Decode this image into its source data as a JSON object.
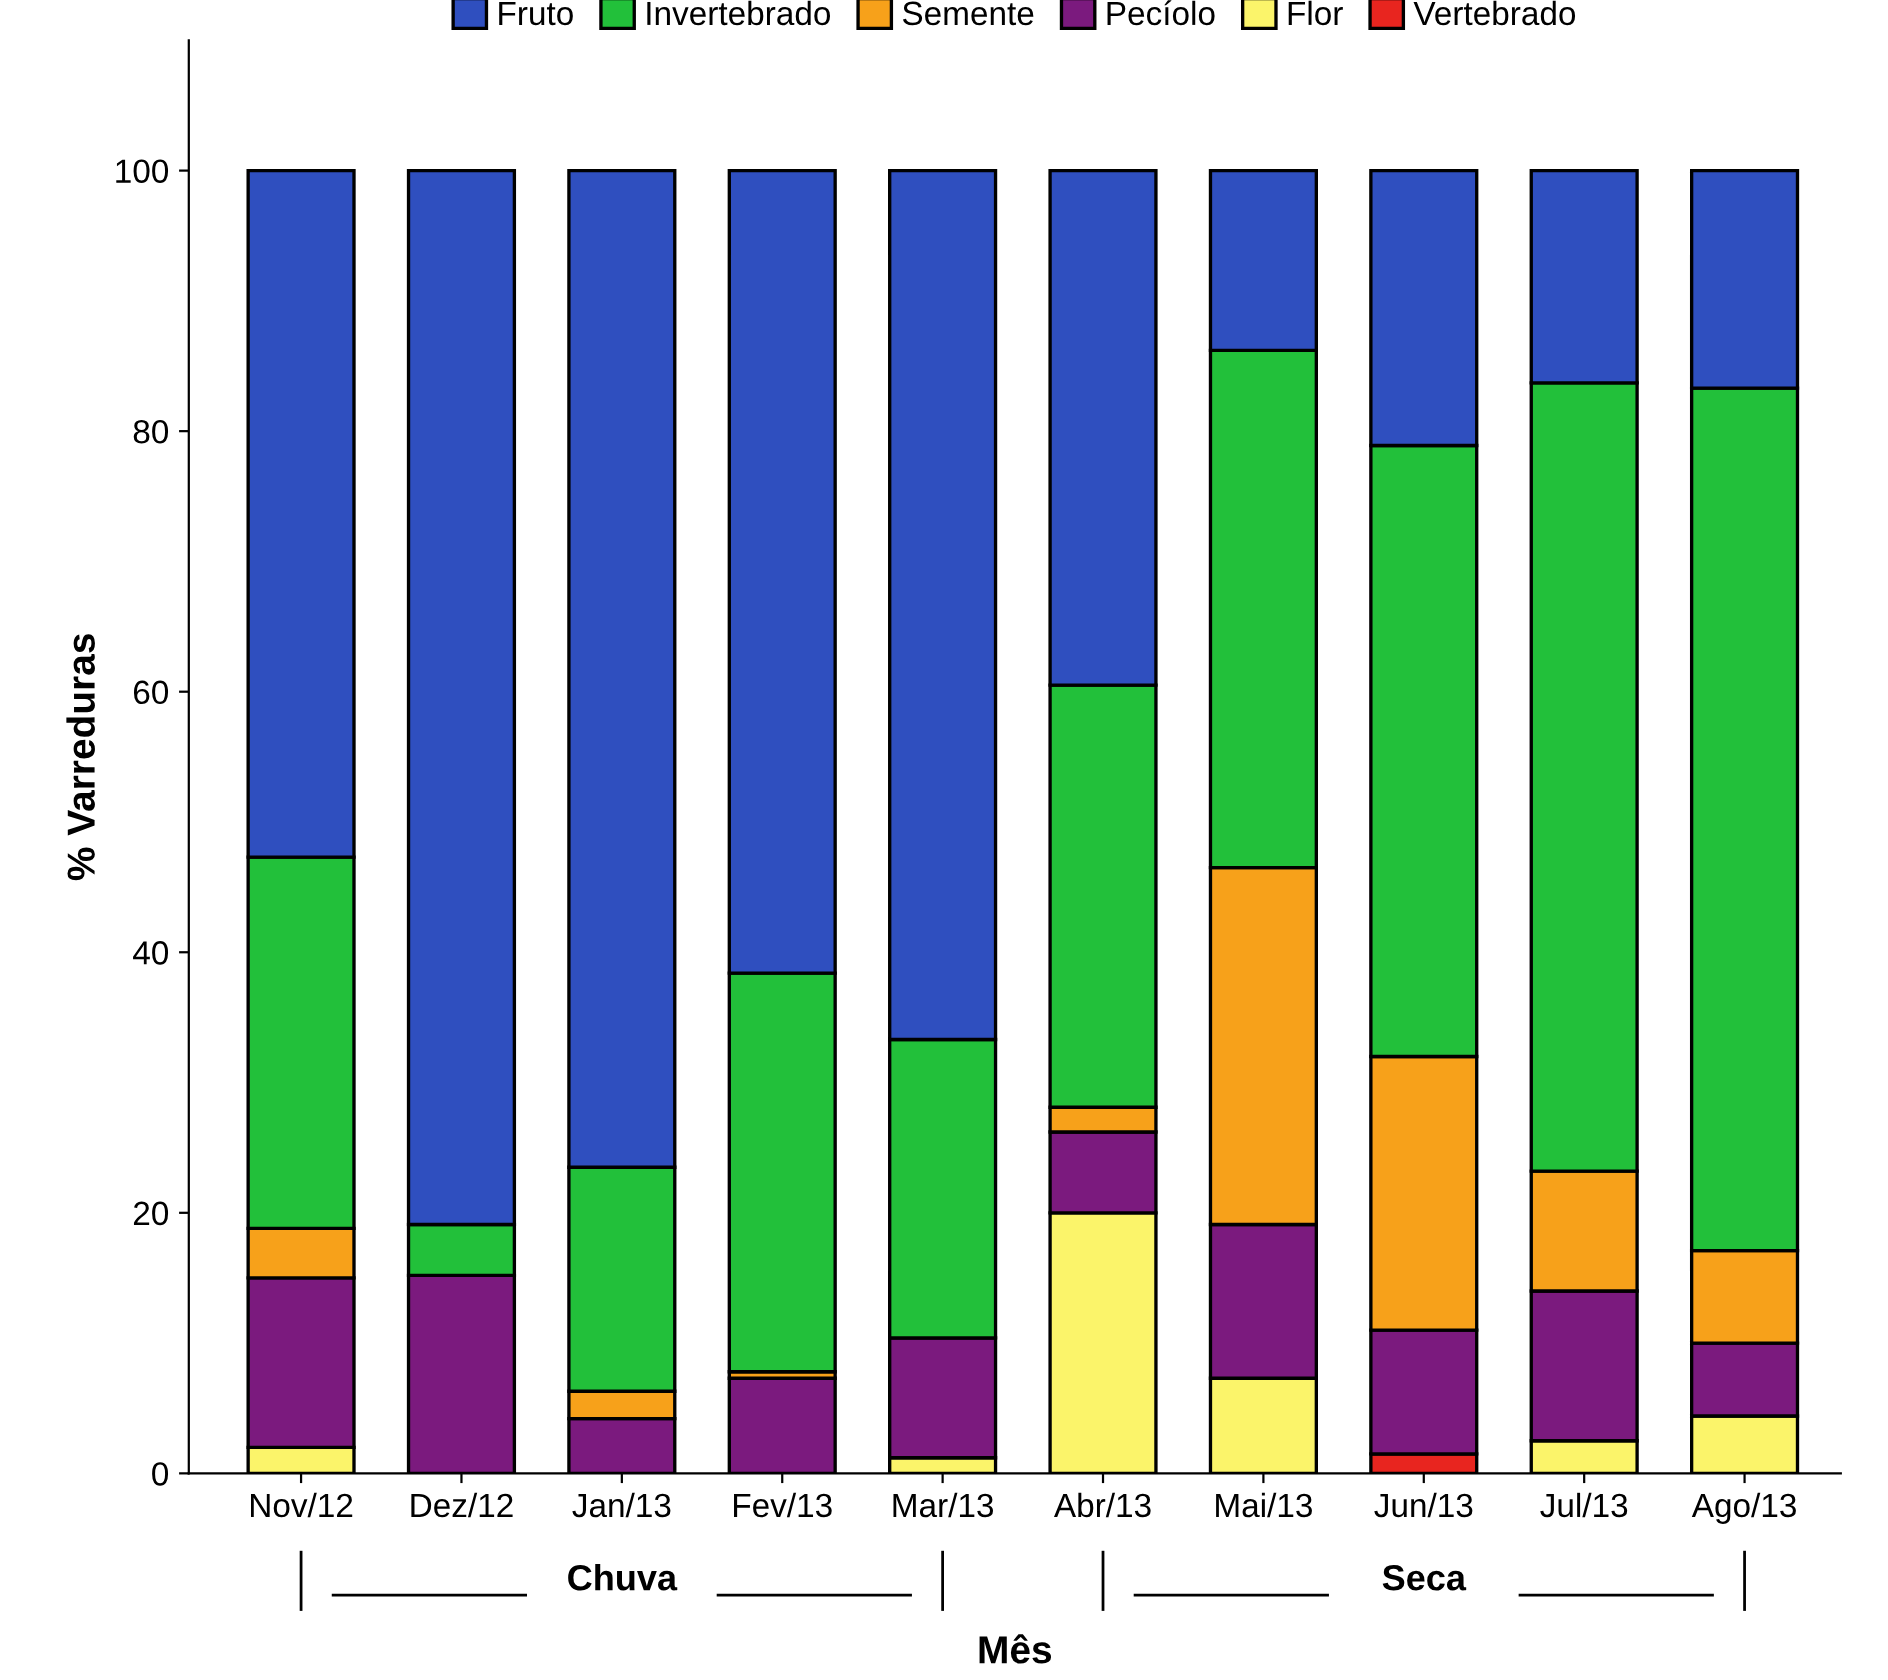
{
  "chart_data": {
    "type": "bar",
    "stacked": true,
    "xlabel": "Mês",
    "ylabel": "% Varreduras",
    "categories": [
      "Nov/12",
      "Dez/12",
      "Jan/13",
      "Fev/13",
      "Mar/13",
      "Abr/13",
      "Mai/13",
      "Jun/13",
      "Jul/13",
      "Ago/13"
    ],
    "series": [
      {
        "name": "Vertebrado",
        "color": "#e8251f",
        "values": [
          0,
          0,
          0,
          0,
          0,
          0,
          0,
          1.5,
          0,
          0
        ]
      },
      {
        "name": "Flor",
        "color": "#fbf46a",
        "values": [
          2.0,
          0,
          0,
          0,
          1.2,
          20.0,
          7.3,
          0,
          2.5,
          4.4
        ]
      },
      {
        "name": "Pecíolo",
        "color": "#7b1a7e",
        "values": [
          13.0,
          15.2,
          4.2,
          7.3,
          9.2,
          6.2,
          11.8,
          9.5,
          11.5,
          5.6
        ]
      },
      {
        "name": "Semente",
        "color": "#f7a11a",
        "values": [
          3.8,
          0,
          2.1,
          0.5,
          0,
          1.9,
          27.4,
          21.0,
          9.2,
          7.1
        ]
      },
      {
        "name": "Invertebrado",
        "color": "#22c03a",
        "values": [
          28.5,
          3.9,
          17.2,
          30.6,
          22.9,
          32.4,
          39.7,
          46.9,
          60.5,
          66.2
        ]
      },
      {
        "name": "Fruto",
        "color": "#2f4fbf",
        "values": [
          52.7,
          80.9,
          76.5,
          61.6,
          66.7,
          39.5,
          13.8,
          21.1,
          16.3,
          16.7
        ]
      }
    ],
    "ylim": [
      0,
      110
    ],
    "yticks": [
      0,
      20,
      40,
      60,
      80,
      100
    ],
    "grid": false,
    "legend": "top",
    "annotations": [
      "Chuva",
      "Seca"
    ]
  }
}
